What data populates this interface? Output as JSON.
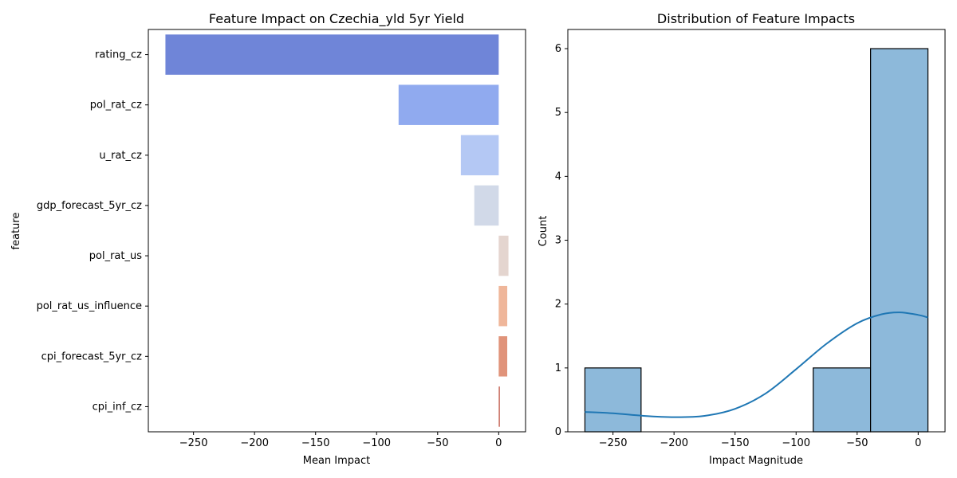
{
  "chart_data": [
    {
      "type": "bar",
      "orientation": "horizontal",
      "title": "Feature Impact on Czechia_yld 5yr Yield",
      "xlabel": "Mean Impact",
      "ylabel": "feature",
      "categories": [
        "rating_cz",
        "pol_rat_cz",
        "u_rat_cz",
        "gdp_forecast_5yr_cz",
        "pol_rat_us",
        "pol_rat_us_influence",
        "cpi_forecast_5yr_cz",
        "cpi_inf_cz"
      ],
      "values": [
        -273,
        -82,
        -31,
        -20,
        8,
        7,
        7,
        1
      ],
      "colors": [
        "#6f85d8",
        "#90aaef",
        "#b4c8f4",
        "#d1d9e8",
        "#e4d5cf",
        "#efb69a",
        "#e0937a",
        "#c76a5c"
      ],
      "xlim": [
        -287,
        22
      ],
      "xticks": [
        -250,
        -200,
        -150,
        -100,
        -50,
        0
      ],
      "xtick_labels": [
        "−250",
        "−200",
        "−150",
        "−100",
        "−50",
        "0"
      ],
      "grid": false
    },
    {
      "type": "histogram",
      "title": "Distribution of Feature Impacts",
      "xlabel": "Impact Magnitude",
      "ylabel": "Count",
      "bins": [
        {
          "x0": -273,
          "x1": -227,
          "count": 1
        },
        {
          "x0": -227,
          "x1": -181,
          "count": 0
        },
        {
          "x0": -181,
          "x1": -134,
          "count": 0
        },
        {
          "x0": -134,
          "x1": -86,
          "count": 0
        },
        {
          "x0": -86,
          "x1": -39,
          "count": 1
        },
        {
          "x0": -39,
          "x1": 8,
          "count": 6
        }
      ],
      "kde": {
        "x": [
          -273,
          -250,
          -225,
          -200,
          -175,
          -150,
          -125,
          -100,
          -75,
          -50,
          -30,
          -15,
          0,
          8
        ],
        "y": [
          0.31,
          0.29,
          0.25,
          0.23,
          0.25,
          0.36,
          0.6,
          0.98,
          1.38,
          1.7,
          1.84,
          1.87,
          1.83,
          1.79
        ]
      },
      "bar_color": "#8db9da",
      "line_color": "#1f77b4",
      "xlim": [
        -287,
        22
      ],
      "ylim": [
        0,
        6.3
      ],
      "xticks": [
        -250,
        -200,
        -150,
        -100,
        -50,
        0
      ],
      "xtick_labels": [
        "−250",
        "−200",
        "−150",
        "−100",
        "−50",
        "0"
      ],
      "yticks": [
        0,
        1,
        2,
        3,
        4,
        5,
        6
      ],
      "ytick_labels": [
        "0",
        "1",
        "2",
        "3",
        "4",
        "5",
        "6"
      ],
      "grid": false
    }
  ]
}
